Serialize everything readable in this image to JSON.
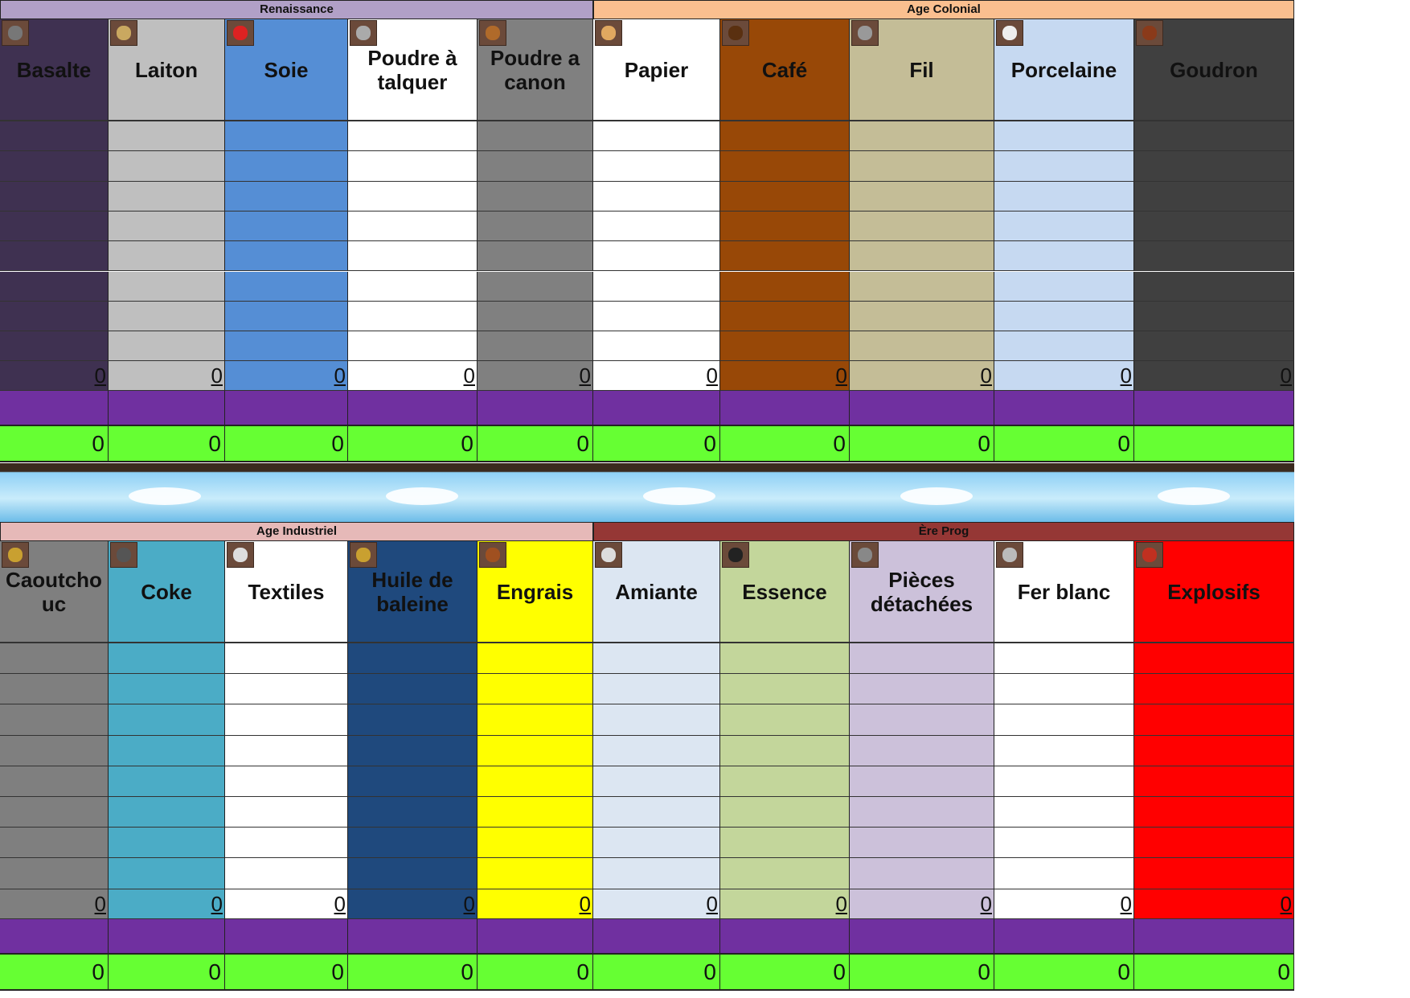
{
  "top": {
    "eras": [
      {
        "label": "Renaissance",
        "color": "#b1a0c7",
        "span": [
          0,
          5
        ]
      },
      {
        "label": "Age Colonial",
        "color": "#fabf8f",
        "span": [
          5,
          10
        ]
      }
    ],
    "resources": [
      {
        "name": "Basalte",
        "color": "#3f3151",
        "icon": "basalt-icon",
        "icon_color": "#777",
        "total": "0",
        "sum": "0"
      },
      {
        "name": "Laiton",
        "color": "#bfbfbf",
        "icon": "brass-icon",
        "icon_color": "#c9a860",
        "total": "0",
        "sum": "0"
      },
      {
        "name": "Soie",
        "color": "#558ed5",
        "icon": "silk-icon",
        "icon_color": "#d22",
        "total": "0",
        "sum": "0"
      },
      {
        "name": "Poudre à talquer",
        "color": "#ffffff",
        "icon": "talc-icon",
        "icon_color": "#aaa",
        "total": "0",
        "sum": "0"
      },
      {
        "name": "Poudre a canon",
        "color": "#808080",
        "icon": "gunpowder-icon",
        "icon_color": "#b06a2a",
        "total": "0",
        "sum": "0"
      },
      {
        "name": "Papier",
        "color": "#ffffff",
        "icon": "paper-icon",
        "icon_color": "#e0a860",
        "total": "0",
        "sum": "0"
      },
      {
        "name": "Café",
        "color": "#984807",
        "icon": "coffee-icon",
        "icon_color": "#5a3010",
        "total": "0",
        "sum": "0"
      },
      {
        "name": "Fil",
        "color": "#c4bd97",
        "icon": "wire-icon",
        "icon_color": "#999",
        "total": "0",
        "sum": "0"
      },
      {
        "name": "Porcelaine",
        "color": "#c6d9f1",
        "icon": "porcelain-icon",
        "icon_color": "#eee",
        "total": "0",
        "sum": "0"
      },
      {
        "name": "Goudron",
        "color": "#404040",
        "icon": "tar-icon",
        "icon_color": "#8a3a1a",
        "total": "0",
        "sum": ""
      }
    ]
  },
  "bottom": {
    "eras": [
      {
        "label": "Age Industriel",
        "color": "#e6b9b8",
        "span": [
          0,
          5
        ]
      },
      {
        "label": "Ère Prog",
        "color": "#953735",
        "span": [
          5,
          10
        ]
      }
    ],
    "resources": [
      {
        "name": "Caoutchouc",
        "display": "Caoutcho uc",
        "color": "#7f7f7f",
        "icon": "rubber-icon",
        "icon_color": "#c9a030",
        "total": "0",
        "sum": "0"
      },
      {
        "name": "Coke",
        "color": "#4bacc6",
        "icon": "coke-icon",
        "icon_color": "#555",
        "total": "0",
        "sum": "0"
      },
      {
        "name": "Textiles",
        "color": "#ffffff",
        "icon": "textiles-icon",
        "icon_color": "#ddd",
        "total": "0",
        "sum": "0"
      },
      {
        "name": "Huile de baleine",
        "color": "#1f497d",
        "icon": "whale-oil-icon",
        "icon_color": "#c9a030",
        "total": "0",
        "sum": "0"
      },
      {
        "name": "Engrais",
        "color": "#ffff00",
        "icon": "fertilizer-icon",
        "icon_color": "#a05020",
        "total": "0",
        "sum": "0"
      },
      {
        "name": "Amiante",
        "color": "#dce6f2",
        "icon": "asbestos-icon",
        "icon_color": "#ddd",
        "total": "0",
        "sum": "0"
      },
      {
        "name": "Essence",
        "color": "#c3d69b",
        "icon": "gasoline-icon",
        "icon_color": "#222",
        "total": "0",
        "sum": "0"
      },
      {
        "name": "Pièces détachées",
        "color": "#ccc1da",
        "icon": "machine-parts-icon",
        "icon_color": "#888",
        "total": "0",
        "sum": "0"
      },
      {
        "name": "Fer blanc",
        "color": "#ffffff",
        "icon": "tinplate-icon",
        "icon_color": "#bbb",
        "total": "0",
        "sum": "0"
      },
      {
        "name": "Explosifs",
        "color": "#ff0000",
        "icon": "explosives-icon",
        "icon_color": "#c03020",
        "total": "0",
        "sum": "0"
      }
    ]
  },
  "colors": {
    "purple_row": "#7030a0",
    "green_row": "#66ff33"
  }
}
